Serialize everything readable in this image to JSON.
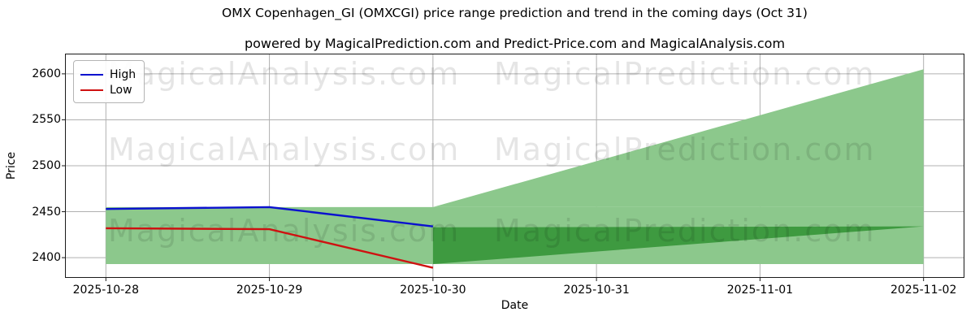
{
  "title": "OMX Copenhagen_GI (OMXCGI) price range prediction and trend in the coming days (Oct 31)",
  "subtitle": "powered by MagicalPrediction.com and Predict-Price.com and MagicalAnalysis.com",
  "watermark": {
    "left_text": "MagicalAnalysis.com",
    "right_text": "MagicalPrediction.com"
  },
  "legend": [
    {
      "label": "High",
      "color": "#0b11cf"
    },
    {
      "label": "Low",
      "color": "#cf1111"
    }
  ],
  "chart_data": {
    "type": "area",
    "title": "OMX Copenhagen_GI (OMXCGI) price range prediction and trend in the coming days (Oct 31)",
    "xlabel": "Date",
    "ylabel": "Price",
    "categories": [
      "2025-10-28",
      "2025-10-29",
      "2025-10-30",
      "2025-10-31",
      "2025-11-01",
      "2025-11-02"
    ],
    "series": [
      {
        "name": "High",
        "x": [
          0,
          1,
          2
        ],
        "values": [
          2453,
          2455,
          2434
        ],
        "color": "#0b11cf"
      },
      {
        "name": "Low",
        "x": [
          0,
          1,
          2
        ],
        "values": [
          2432,
          2431,
          2389
        ],
        "color": "#cf1111"
      }
    ],
    "range_band": {
      "x0": 0,
      "x1": 5,
      "bottom": 2393,
      "top": 2455,
      "color": "#8cc88c",
      "note": "flat historical/prediction range band spanning all dates"
    },
    "prediction_fan": {
      "x0": 2,
      "x1": 5,
      "base": 2455,
      "top_start": 2455,
      "top_end": 2605,
      "color": "#8cc88c",
      "note": "upward-expanding predicted high range from Oct 30 to Nov 2"
    },
    "dark_wedge": {
      "x0": 2,
      "x1": 5,
      "top_start": 2433,
      "top_end": 2434,
      "bottom_start": 2393,
      "color": "#3e9a40",
      "note": "dark green converging wedge of predicted low range"
    },
    "yticks": [
      2400,
      2450,
      2500,
      2550,
      2600
    ],
    "ylim": [
      2378,
      2622
    ],
    "xlim": [
      -0.25,
      5.25
    ],
    "grid": true,
    "grid_color": "#b0b0b0",
    "spine_color": "#1a1a1a",
    "legend_position": "upper left"
  }
}
